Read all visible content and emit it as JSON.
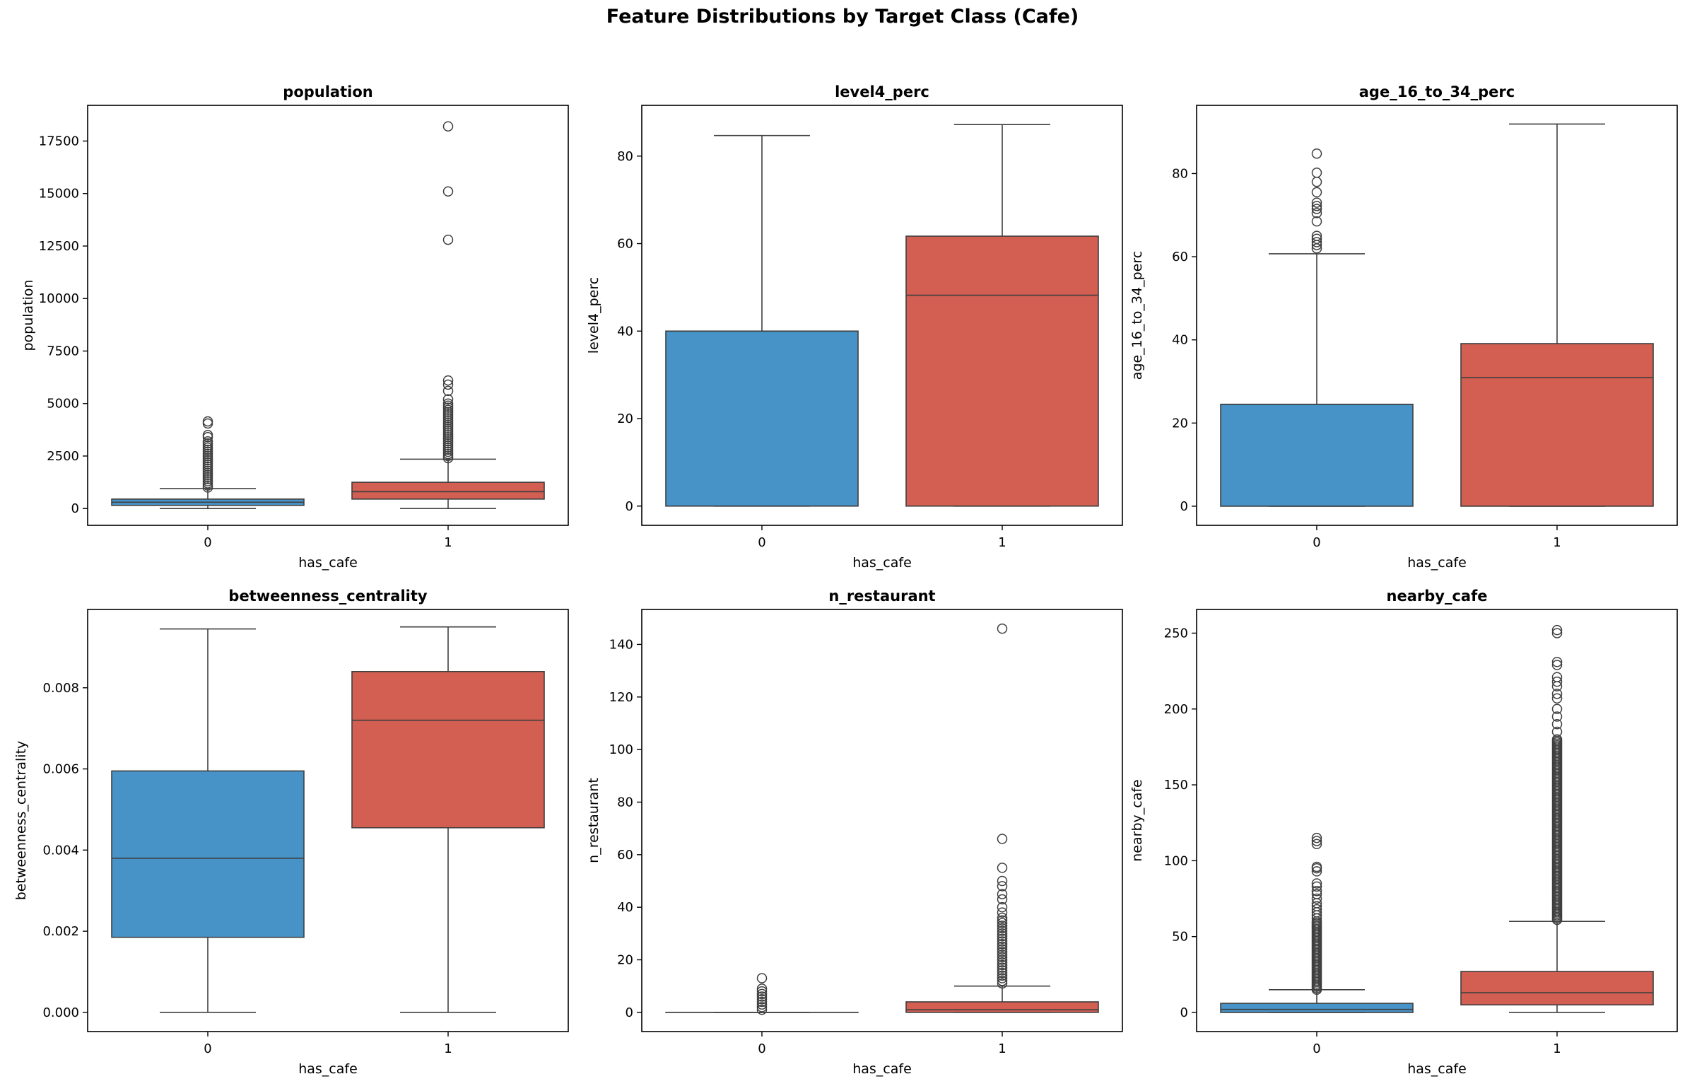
{
  "figure": {
    "suptitle": "Feature Distributions by Target Class (Cafe)"
  },
  "colors": {
    "class0": "#4793C8",
    "class1": "#D35E52",
    "edge": "#3f3f3f"
  },
  "chart_data": [
    {
      "type": "box",
      "title": "population",
      "xlabel": "has_cafe",
      "ylabel": "population",
      "categories": [
        "0",
        "1"
      ],
      "ylim": [
        -800,
        19200
      ],
      "yticks": [
        0,
        2500,
        5000,
        7500,
        10000,
        12500,
        15000,
        17500
      ],
      "ytick_labels": [
        "0",
        "2500",
        "5000",
        "7500",
        "10000",
        "12500",
        "15000",
        "17500"
      ],
      "boxes": [
        {
          "category": "0",
          "whislo": 0,
          "q1": 150,
          "median": 300,
          "q3": 450,
          "whishi": 950,
          "fliers": [
            1000,
            1100,
            1200,
            1300,
            1400,
            1500,
            1600,
            1700,
            1800,
            1900,
            2000,
            2100,
            2200,
            2300,
            2400,
            2500,
            2600,
            2700,
            2800,
            2900,
            3000,
            3100,
            3200,
            3400,
            3500,
            4050,
            4150
          ]
        },
        {
          "category": "1",
          "whislo": 0,
          "q1": 450,
          "median": 800,
          "q3": 1250,
          "whishi": 2350,
          "fliers": [
            2400,
            2500,
            2600,
            2700,
            2800,
            2900,
            3000,
            3100,
            3200,
            3300,
            3400,
            3500,
            3600,
            3700,
            3800,
            3900,
            4000,
            4100,
            4200,
            4300,
            4400,
            4500,
            4600,
            4700,
            4800,
            4900,
            5000,
            5200,
            5600,
            5900,
            6100,
            12800,
            15100,
            18200
          ]
        }
      ]
    },
    {
      "type": "box",
      "title": "level4_perc",
      "xlabel": "has_cafe",
      "ylabel": "level4_perc",
      "categories": [
        "0",
        "1"
      ],
      "ylim": [
        -4.4,
        91.6
      ],
      "yticks": [
        0,
        20,
        40,
        60,
        80
      ],
      "ytick_labels": [
        "0",
        "20",
        "40",
        "60",
        "80"
      ],
      "boxes": [
        {
          "category": "0",
          "whislo": 0,
          "q1": 0,
          "median": 40,
          "q3": 40,
          "whishi": 84.7,
          "fliers": []
        },
        {
          "category": "1",
          "whislo": 0,
          "q1": 0,
          "median": 48.2,
          "q3": 61.7,
          "whishi": 87.2,
          "fliers": []
        }
      ]
    },
    {
      "type": "box",
      "title": "age_16_to_34_perc",
      "xlabel": "has_cafe",
      "ylabel": "age_16_to_34_perc",
      "categories": [
        "0",
        "1"
      ],
      "ylim": [
        -4.6,
        96.4
      ],
      "yticks": [
        0,
        20,
        40,
        60,
        80
      ],
      "ytick_labels": [
        "0",
        "20",
        "40",
        "60",
        "80"
      ],
      "boxes": [
        {
          "category": "0",
          "whislo": 0,
          "q1": 0,
          "median": 24.5,
          "q3": 24.5,
          "whishi": 60.7,
          "fliers": [
            62,
            62.8,
            63.5,
            64.3,
            65,
            68.5,
            70.5,
            71.5,
            72.2,
            73,
            75.5,
            78,
            80.2,
            84.8
          ]
        },
        {
          "category": "1",
          "whislo": 0,
          "q1": 0,
          "median": 30.9,
          "q3": 39.1,
          "whishi": 91.9,
          "fliers": []
        }
      ]
    },
    {
      "type": "box",
      "title": "betweenness_centrality",
      "xlabel": "has_cafe",
      "ylabel": "betweenness_centrality",
      "categories": [
        "0",
        "1"
      ],
      "ylim": [
        -0.000473,
        0.00993
      ],
      "yticks": [
        0,
        0.002,
        0.004,
        0.006,
        0.008
      ],
      "ytick_labels": [
        "0.000",
        "0.002",
        "0.004",
        "0.006",
        "0.008"
      ],
      "boxes": [
        {
          "category": "0",
          "whislo": 0,
          "q1": 0.00185,
          "median": 0.0038,
          "q3": 0.00595,
          "whishi": 0.00945,
          "fliers": []
        },
        {
          "category": "1",
          "whislo": 0,
          "q1": 0.00455,
          "median": 0.0072,
          "q3": 0.0084,
          "whishi": 0.0095,
          "fliers": []
        }
      ]
    },
    {
      "type": "box",
      "title": "n_restaurant",
      "xlabel": "has_cafe",
      "ylabel": "n_restaurant",
      "categories": [
        "0",
        "1"
      ],
      "ylim": [
        -7.3,
        153.3
      ],
      "yticks": [
        0,
        20,
        40,
        60,
        80,
        100,
        120,
        140
      ],
      "ytick_labels": [
        "0",
        "20",
        "40",
        "60",
        "80",
        "100",
        "120",
        "140"
      ],
      "boxes": [
        {
          "category": "0",
          "whislo": 0,
          "q1": 0,
          "median": 0,
          "q3": 0,
          "whishi": 0,
          "fliers": [
            1,
            2,
            3,
            4,
            5,
            6,
            7,
            8,
            9,
            13
          ]
        },
        {
          "category": "1",
          "whislo": 0,
          "q1": 0,
          "median": 1,
          "q3": 4,
          "whishi": 10,
          "fliers": [
            11,
            12,
            13,
            14,
            15,
            16,
            17,
            18,
            19,
            20,
            21,
            22,
            23,
            24,
            25,
            26,
            27,
            28,
            29,
            30,
            31,
            32,
            33,
            34,
            35,
            36,
            38,
            40,
            43,
            45,
            48,
            50,
            55,
            66,
            146
          ]
        }
      ]
    },
    {
      "type": "box",
      "title": "nearby_cafe",
      "xlabel": "has_cafe",
      "ylabel": "nearby_cafe",
      "categories": [
        "0",
        "1"
      ],
      "ylim": [
        -12.6,
        265.6
      ],
      "yticks": [
        0,
        50,
        100,
        150,
        200,
        250
      ],
      "ytick_labels": [
        "0",
        "50",
        "100",
        "150",
        "200",
        "250"
      ],
      "boxes": [
        {
          "category": "0",
          "whislo": 0,
          "q1": 0,
          "median": 2,
          "q3": 6,
          "whishi": 15,
          "fliers": [
            15,
            16,
            17,
            18,
            19,
            20,
            21,
            22,
            23,
            24,
            25,
            26,
            27,
            28,
            29,
            30,
            31,
            32,
            33,
            34,
            35,
            36,
            37,
            38,
            39,
            40,
            41,
            42,
            43,
            44,
            45,
            46,
            47,
            48,
            49,
            50,
            51,
            52,
            53,
            54,
            55,
            56,
            57,
            58,
            59,
            60,
            62,
            64,
            66,
            68,
            70,
            72,
            75,
            78,
            80,
            83,
            85,
            93,
            95,
            96,
            111,
            113,
            115
          ]
        },
        {
          "category": "1",
          "whislo": 0,
          "q1": 5,
          "median": 13,
          "q3": 27,
          "whishi": 60,
          "fliers": [
            61,
            62,
            63,
            64,
            65,
            66,
            67,
            68,
            69,
            70,
            71,
            72,
            73,
            74,
            75,
            76,
            77,
            78,
            79,
            80,
            81,
            82,
            83,
            84,
            85,
            86,
            87,
            88,
            89,
            90,
            91,
            92,
            93,
            94,
            95,
            96,
            97,
            98,
            99,
            100,
            101,
            102,
            103,
            104,
            105,
            106,
            107,
            108,
            109,
            110,
            111,
            112,
            113,
            114,
            115,
            116,
            117,
            118,
            119,
            120,
            121,
            122,
            123,
            124,
            125,
            126,
            127,
            128,
            129,
            130,
            131,
            132,
            133,
            134,
            135,
            136,
            137,
            138,
            139,
            140,
            141,
            142,
            143,
            144,
            145,
            146,
            147,
            148,
            149,
            150,
            151,
            152,
            153,
            154,
            155,
            156,
            157,
            158,
            159,
            160,
            161,
            162,
            163,
            164,
            165,
            166,
            167,
            168,
            169,
            170,
            171,
            172,
            173,
            174,
            175,
            176,
            177,
            178,
            179,
            180,
            185,
            190,
            195,
            200,
            207,
            210,
            215,
            218,
            221,
            229,
            231,
            250,
            252
          ]
        }
      ]
    }
  ]
}
